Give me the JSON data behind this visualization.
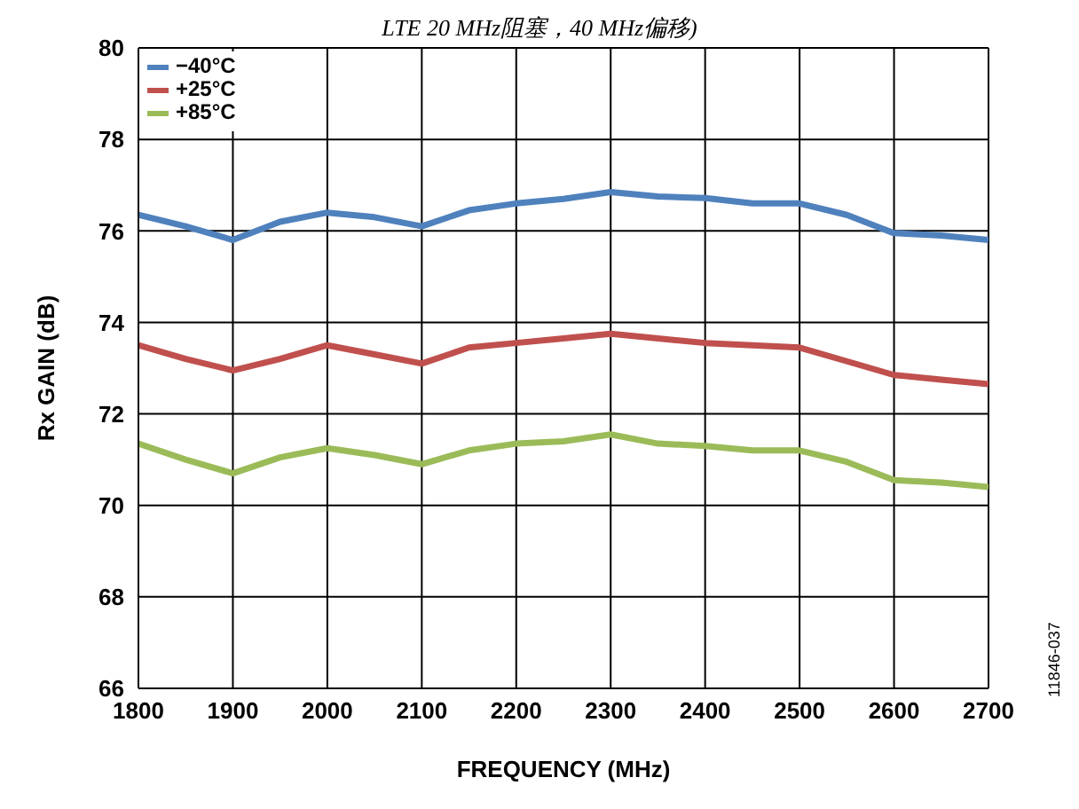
{
  "chart_data": {
    "type": "line",
    "title": "LTE 20 MHz阻塞，40 MHz偏移)",
    "xlabel": "FREQUENCY (MHz)",
    "ylabel": "Rx GAIN (dB)",
    "annotations": [
      "11846-037"
    ],
    "x": [
      1800,
      1850,
      1900,
      1950,
      2000,
      2050,
      2100,
      2150,
      2200,
      2250,
      2300,
      2350,
      2400,
      2450,
      2500,
      2550,
      2600,
      2650,
      2700
    ],
    "series": [
      {
        "name": "−40°C",
        "color": "#4f81bd",
        "values": [
          76.35,
          76.1,
          75.8,
          76.2,
          76.4,
          76.3,
          76.1,
          76.45,
          76.6,
          76.7,
          76.85,
          76.75,
          76.72,
          76.6,
          76.6,
          76.35,
          75.95,
          75.9,
          75.8
        ]
      },
      {
        "name": "+25°C",
        "color": "#c0504d",
        "values": [
          73.5,
          73.2,
          72.95,
          73.2,
          73.5,
          73.3,
          73.1,
          73.45,
          73.55,
          73.65,
          73.75,
          73.65,
          73.55,
          73.5,
          73.45,
          73.15,
          72.85,
          72.75,
          72.65
        ]
      },
      {
        "name": "+85°C",
        "color": "#9bbb59",
        "values": [
          71.35,
          71.0,
          70.7,
          71.05,
          71.25,
          71.1,
          70.9,
          71.2,
          71.35,
          71.4,
          71.55,
          71.35,
          71.3,
          71.2,
          71.2,
          70.95,
          70.55,
          70.5,
          70.4
        ]
      }
    ],
    "xlim": [
      1800,
      2700
    ],
    "xticks": [
      1800,
      1900,
      2000,
      2100,
      2200,
      2300,
      2400,
      2500,
      2600,
      2700
    ],
    "ylim": [
      66,
      80
    ],
    "yticks": [
      66,
      68,
      70,
      72,
      74,
      76,
      78,
      80
    ],
    "grid": true,
    "legend": "top left",
    "marker": "none",
    "line_style": "solid"
  }
}
